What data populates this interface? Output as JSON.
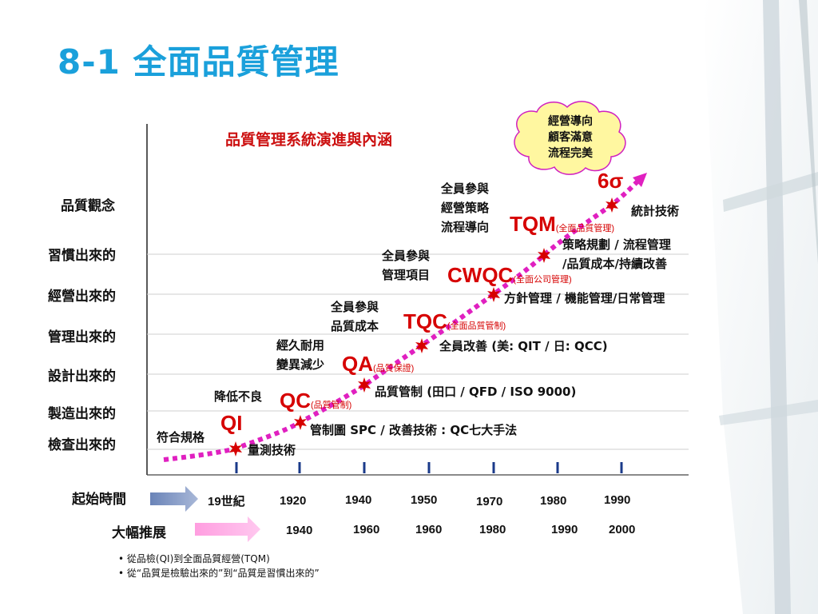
{
  "title": "8-1 全面品質管理",
  "chart_title": "品質管理系統演進與內涵",
  "y_axis": {
    "header": "品質觀念",
    "levels": [
      "習慣出來的",
      "經營出來的",
      "管理出來的",
      "設計出來的",
      "製造出來的",
      "檢查出來的"
    ]
  },
  "cloud": [
    "經營導向",
    "顧客滿意",
    "流程完美"
  ],
  "stages": [
    {
      "code": "QI",
      "full": "",
      "note": "符合規格",
      "tech": "量測技術"
    },
    {
      "code": "QC",
      "full": "(品質管制)",
      "note": "降低不良",
      "tech": "管制圖 SPC / 改善技術 : QC七大手法"
    },
    {
      "code": "QA",
      "full": "(品質保證)",
      "note": "經久耐用\n變異減少",
      "tech": "品質管制 (田口 / QFD / ISO 9000)"
    },
    {
      "code": "TQC",
      "full": "(全面品質管制)",
      "note": "全員參與\n品質成本",
      "tech": "全員改善 (美: QIT / 日: QCC)"
    },
    {
      "code": "CWQC",
      "full": "(全面公司管理)",
      "note": "全員參與\n管理項目",
      "tech": "方針管理 / 機能管理/日常管理"
    },
    {
      "code": "TQM",
      "full": "(全面品質管理)",
      "note": "全員參與\n經營策略\n流程導向",
      "tech": "策略規劃 / 流程管理\n/品質成本/持續改善"
    },
    {
      "code": "6σ",
      "full": "",
      "note": "",
      "tech": "統計技術"
    }
  ],
  "timeline": {
    "start_label": "起始時間",
    "start_years": [
      "19世紀",
      "1920",
      "1940",
      "1950",
      "1970",
      "1980",
      "1990"
    ],
    "expand_label": "大幅推展",
    "expand_years": [
      "1940",
      "1960",
      "1960",
      "1980",
      "1990",
      "2000"
    ]
  },
  "bullets": [
    "從品檢(QI)到全面品質經營(TQM)",
    "從“品質是檢驗出來的”到“品質是習慣出來的”"
  ],
  "colors": {
    "title": "#1aa0db",
    "stage": "#d60000",
    "curve": "#e020c0",
    "tick": "#1a3a8a",
    "cloud": "#fff7a0"
  }
}
